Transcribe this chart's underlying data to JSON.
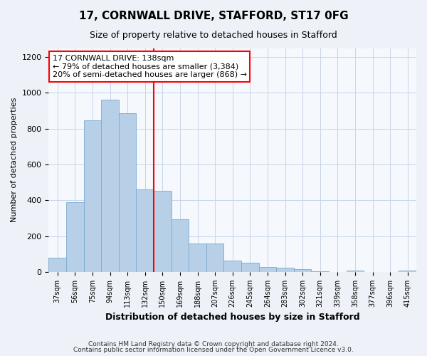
{
  "title1": "17, CORNWALL DRIVE, STAFFORD, ST17 0FG",
  "title2": "Size of property relative to detached houses in Stafford",
  "xlabel": "Distribution of detached houses by size in Stafford",
  "ylabel": "Number of detached properties",
  "categories": [
    "37sqm",
    "56sqm",
    "75sqm",
    "94sqm",
    "113sqm",
    "132sqm",
    "150sqm",
    "169sqm",
    "188sqm",
    "207sqm",
    "226sqm",
    "245sqm",
    "264sqm",
    "283sqm",
    "302sqm",
    "321sqm",
    "339sqm",
    "358sqm",
    "377sqm",
    "396sqm",
    "415sqm"
  ],
  "values": [
    80,
    390,
    845,
    960,
    885,
    460,
    455,
    295,
    160,
    160,
    65,
    50,
    30,
    25,
    15,
    5,
    0,
    8,
    0,
    0,
    8
  ],
  "bar_color": "#b8cfe8",
  "bar_edge_color": "#7aaad0",
  "red_line_x": 5.5,
  "annotation_line1": "17 CORNWALL DRIVE: 138sqm",
  "annotation_line2": "← 79% of detached houses are smaller (3,384)",
  "annotation_line3": "20% of semi-detached houses are larger (868) →",
  "ylim": [
    0,
    1250
  ],
  "yticks": [
    0,
    200,
    400,
    600,
    800,
    1000,
    1200
  ],
  "footer1": "Contains HM Land Registry data © Crown copyright and database right 2024.",
  "footer2": "Contains public sector information licensed under the Open Government Licence v3.0.",
  "bg_color": "#eef2f8",
  "plot_bg_color": "#f5f8fd",
  "grid_color": "#c8d4e8",
  "title1_fontsize": 11,
  "title2_fontsize": 9,
  "ylabel_fontsize": 8,
  "xlabel_fontsize": 9,
  "tick_fontsize": 8,
  "annot_fontsize": 8
}
